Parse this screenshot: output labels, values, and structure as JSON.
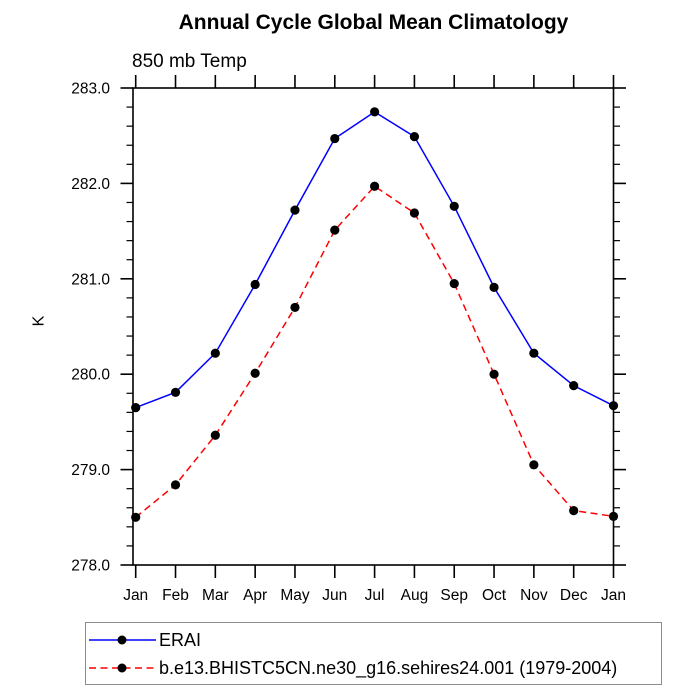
{
  "chart_data": {
    "type": "line",
    "title": "Annual Cycle Global Mean Climatology",
    "subtitle": "850 mb Temp",
    "ylabel": "K",
    "xlabel": "",
    "categories": [
      "Jan",
      "Feb",
      "Mar",
      "Apr",
      "May",
      "Jun",
      "Jul",
      "Aug",
      "Sep",
      "Oct",
      "Nov",
      "Dec",
      "Jan"
    ],
    "ylim": [
      278.0,
      283.0
    ],
    "ytick_interval": 1.0,
    "ytick_minor_interval": 0.2,
    "ytick_labels": [
      "278.0",
      "279.0",
      "280.0",
      "281.0",
      "282.0",
      "283.0"
    ],
    "grid": false,
    "legend_position": "bottom-left",
    "series": [
      {
        "name": "ERAI",
        "color": "#0000ff",
        "style": "solid",
        "marker": "black-dot",
        "values": [
          279.65,
          279.81,
          280.22,
          280.94,
          281.72,
          282.47,
          282.75,
          282.49,
          281.76,
          280.91,
          280.22,
          279.88,
          279.67
        ]
      },
      {
        "name": "b.e13.BHISTC5CN.ne30_g16.sehires24.001 (1979-2004)",
        "color": "#ff0000",
        "style": "dashed",
        "marker": "black-dot",
        "values": [
          278.5,
          278.84,
          279.36,
          280.01,
          280.7,
          281.51,
          281.97,
          281.69,
          280.95,
          280.0,
          279.05,
          278.57,
          278.51
        ]
      }
    ]
  },
  "colors": {
    "axis": "#000000",
    "marker": "#000000",
    "erai_line": "#0000ff",
    "model_line": "#ff0000",
    "background": "#ffffff",
    "legend_border": "#8c8c8c"
  }
}
